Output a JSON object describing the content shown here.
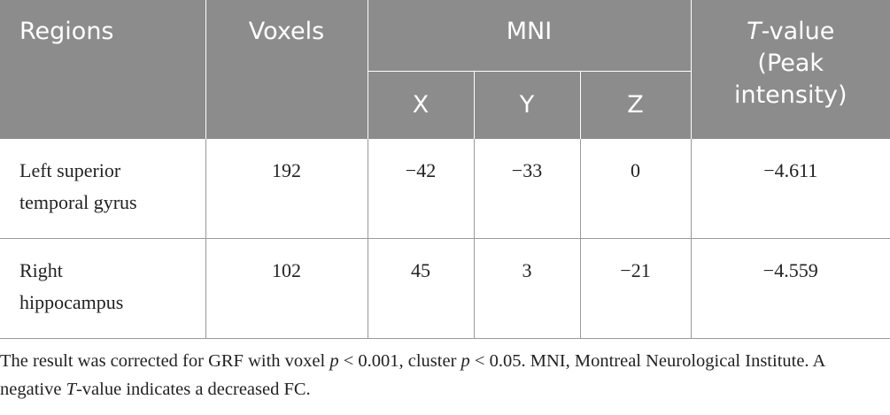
{
  "table": {
    "header": [
      {
        "text": "Regions"
      },
      {
        "text": "Voxels"
      },
      {
        "text": "MNI"
      },
      {
        "italic": "T",
        "rest": "-value (Peak intensity)"
      }
    ],
    "subheader": [
      "X",
      "Y",
      "Z"
    ],
    "rows": [
      [
        "Left superior temporal gyrus",
        "192",
        "−42",
        "−33",
        "0",
        "−4.611"
      ],
      [
        "Right hippocampus",
        "102",
        "45",
        "3",
        "−21",
        "−4.559"
      ]
    ]
  },
  "footnote": [
    {
      "text": "The result was corrected for GRF with voxel ",
      "italic": false
    },
    {
      "text": "p",
      "italic": true
    },
    {
      "text": " < 0.001, cluster ",
      "italic": false
    },
    {
      "text": "p",
      "italic": true
    },
    {
      "text": " < 0.05. MNI, Montreal Neurological Institute. A negative ",
      "italic": false
    },
    {
      "text": "T",
      "italic": true
    },
    {
      "text": "-value indicates a decreased FC.",
      "italic": false
    }
  ]
}
